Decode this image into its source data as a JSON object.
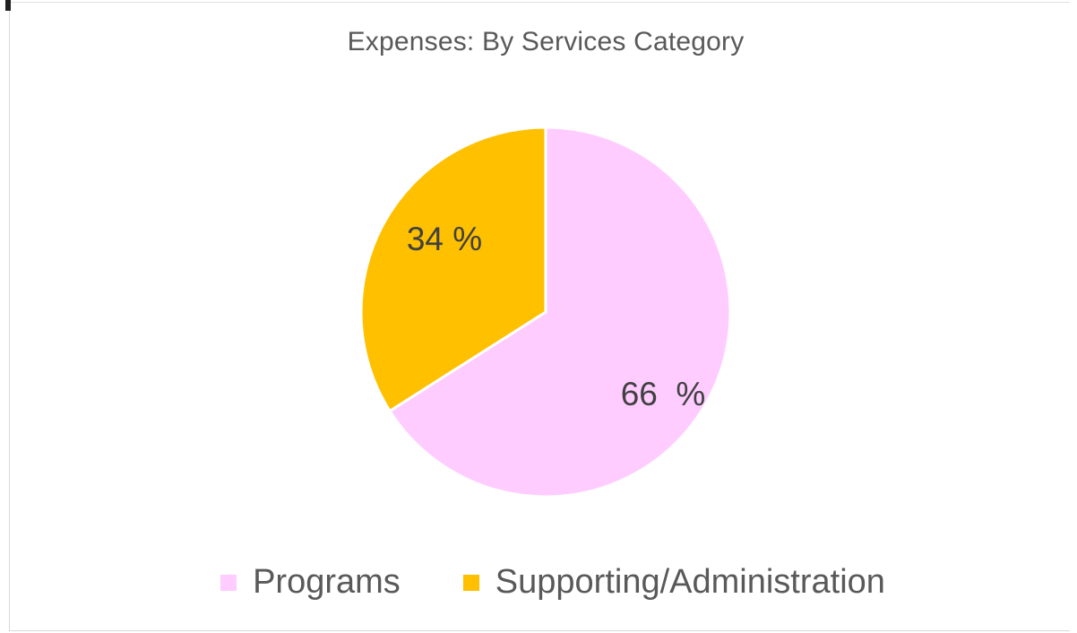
{
  "chart_data": {
    "type": "pie",
    "title": "Expenses: By Services Category",
    "slices": [
      {
        "label": "Programs",
        "value": 66,
        "display": "66  %",
        "color": "#FFCCFF"
      },
      {
        "label": "Supporting/Administration",
        "value": 34,
        "display": "34 %",
        "color": "#FFC000"
      }
    ],
    "legend_position": "bottom"
  }
}
